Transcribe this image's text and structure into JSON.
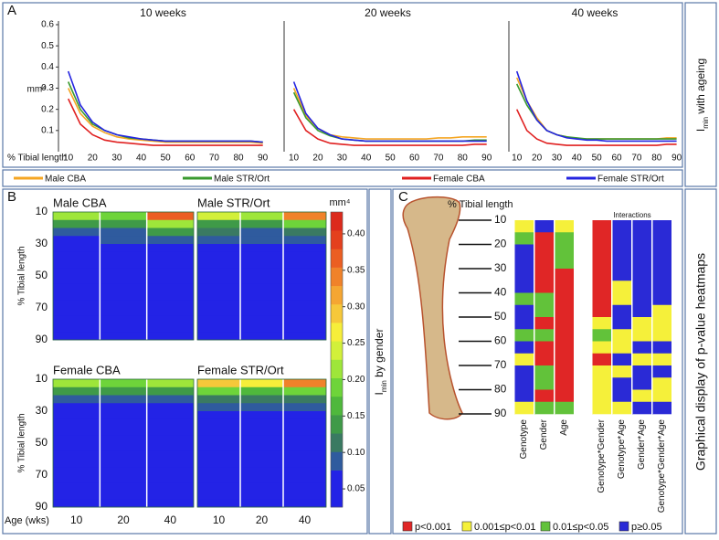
{
  "panels": {
    "a": {
      "label": "A",
      "side_title": {
        "symbol": "I",
        "subscript": "min",
        "text": " with ageing"
      }
    },
    "b": {
      "label": "B",
      "side_title": {
        "symbol": "I",
        "subscript": "min",
        "text": " by gender"
      }
    },
    "c": {
      "label": "C",
      "side_title": "Graphical display of p-value heatmaps"
    }
  },
  "chart_data": [
    {
      "type": "line",
      "title": "10 weeks",
      "ylabel": "mm⁴",
      "xlabel": "% Tibial length",
      "x": [
        10,
        15,
        20,
        25,
        30,
        35,
        40,
        45,
        50,
        55,
        60,
        65,
        70,
        75,
        80,
        85,
        90
      ],
      "xlim": [
        6,
        92
      ],
      "xticks": [
        10,
        20,
        30,
        40,
        50,
        60,
        70,
        80,
        90
      ],
      "ylim": [
        0,
        0.6
      ],
      "yticks": [
        0.1,
        0.2,
        0.3,
        0.4,
        0.5,
        0.6
      ],
      "series": [
        {
          "name": "Male CBA",
          "color": "#f5a623",
          "values": [
            0.3,
            0.18,
            0.12,
            0.09,
            0.07,
            0.06,
            0.055,
            0.05,
            0.045,
            0.045,
            0.045,
            0.045,
            0.045,
            0.045,
            0.045,
            0.045,
            0.04
          ]
        },
        {
          "name": "Male STR/Ort",
          "color": "#3a9a2f",
          "values": [
            0.33,
            0.2,
            0.13,
            0.1,
            0.08,
            0.065,
            0.06,
            0.055,
            0.05,
            0.05,
            0.05,
            0.05,
            0.05,
            0.05,
            0.05,
            0.05,
            0.045
          ]
        },
        {
          "name": "Female CBA",
          "color": "#e02020",
          "values": [
            0.25,
            0.13,
            0.08,
            0.055,
            0.045,
            0.04,
            0.035,
            0.03,
            0.03,
            0.03,
            0.03,
            0.03,
            0.03,
            0.03,
            0.03,
            0.03,
            0.03
          ]
        },
        {
          "name": "Female STR/Ort",
          "color": "#2424e0",
          "values": [
            0.38,
            0.22,
            0.14,
            0.1,
            0.08,
            0.07,
            0.06,
            0.055,
            0.05,
            0.05,
            0.05,
            0.05,
            0.05,
            0.05,
            0.05,
            0.05,
            0.045
          ]
        }
      ]
    },
    {
      "type": "line",
      "title": "20 weeks",
      "x": [
        10,
        15,
        20,
        25,
        30,
        35,
        40,
        45,
        50,
        55,
        60,
        65,
        70,
        75,
        80,
        85,
        90
      ],
      "xlim": [
        6,
        92
      ],
      "xticks": [
        10,
        20,
        30,
        40,
        50,
        60,
        70,
        80,
        90
      ],
      "ylim": [
        0,
        0.6
      ],
      "series": [
        {
          "name": "Male CBA",
          "color": "#f5a623",
          "values": [
            0.3,
            0.17,
            0.11,
            0.08,
            0.07,
            0.065,
            0.06,
            0.06,
            0.06,
            0.06,
            0.06,
            0.06,
            0.065,
            0.065,
            0.07,
            0.07,
            0.07
          ]
        },
        {
          "name": "Male STR/Ort",
          "color": "#3a9a2f",
          "values": [
            0.28,
            0.16,
            0.1,
            0.075,
            0.06,
            0.055,
            0.05,
            0.05,
            0.05,
            0.05,
            0.05,
            0.05,
            0.05,
            0.05,
            0.05,
            0.055,
            0.055
          ]
        },
        {
          "name": "Female CBA",
          "color": "#e02020",
          "values": [
            0.2,
            0.1,
            0.06,
            0.04,
            0.035,
            0.03,
            0.03,
            0.03,
            0.03,
            0.03,
            0.03,
            0.03,
            0.03,
            0.03,
            0.03,
            0.035,
            0.035
          ]
        },
        {
          "name": "Female STR/Ort",
          "color": "#2424e0",
          "values": [
            0.33,
            0.18,
            0.11,
            0.08,
            0.06,
            0.055,
            0.05,
            0.05,
            0.05,
            0.05,
            0.05,
            0.05,
            0.05,
            0.05,
            0.05,
            0.05,
            0.05
          ]
        }
      ]
    },
    {
      "type": "line",
      "title": "40 weeks",
      "x": [
        10,
        15,
        20,
        25,
        30,
        35,
        40,
        45,
        50,
        55,
        60,
        65,
        70,
        75,
        80,
        85,
        90
      ],
      "xlim": [
        6,
        92
      ],
      "xticks": [
        10,
        20,
        30,
        40,
        50,
        60,
        70,
        80,
        90
      ],
      "ylim": [
        0,
        0.6
      ],
      "series": [
        {
          "name": "Male CBA",
          "color": "#f5a623",
          "values": [
            0.35,
            0.24,
            0.16,
            0.1,
            0.08,
            0.07,
            0.06,
            0.06,
            0.06,
            0.06,
            0.06,
            0.06,
            0.06,
            0.06,
            0.06,
            0.065,
            0.065
          ]
        },
        {
          "name": "Male STR/Ort",
          "color": "#3a9a2f",
          "values": [
            0.32,
            0.22,
            0.15,
            0.1,
            0.08,
            0.07,
            0.065,
            0.06,
            0.06,
            0.06,
            0.06,
            0.06,
            0.06,
            0.06,
            0.06,
            0.06,
            0.06
          ]
        },
        {
          "name": "Female CBA",
          "color": "#e02020",
          "values": [
            0.2,
            0.1,
            0.06,
            0.04,
            0.035,
            0.03,
            0.03,
            0.03,
            0.03,
            0.03,
            0.03,
            0.03,
            0.03,
            0.03,
            0.03,
            0.035,
            0.035
          ]
        },
        {
          "name": "Female STR/Ort",
          "color": "#2424e0",
          "values": [
            0.38,
            0.24,
            0.15,
            0.1,
            0.08,
            0.065,
            0.06,
            0.055,
            0.055,
            0.05,
            0.05,
            0.05,
            0.05,
            0.05,
            0.05,
            0.05,
            0.05
          ]
        }
      ]
    },
    {
      "type": "heatmap",
      "title": "Male CBA",
      "ylabel": "% Tibial length",
      "y_bins": [
        10,
        15,
        20,
        25,
        30,
        35,
        40,
        45,
        50,
        55,
        60,
        65,
        70,
        75,
        80,
        85,
        90
      ],
      "yticks": [
        10,
        30,
        50,
        70,
        90
      ],
      "values": [
        [
          0.22,
          0.14,
          0.1,
          0.075,
          0.065,
          0.06,
          0.04,
          0.04,
          0.04,
          0.04,
          0.04,
          0.04,
          0.04,
          0.04,
          0.04,
          0.04
        ],
        [
          0.2,
          0.13,
          0.1,
          0.08,
          0.07,
          0.065,
          0.065,
          0.055,
          0.04,
          0.04,
          0.04,
          0.04,
          0.04,
          0.04,
          0.04,
          0.045
        ],
        [
          0.36,
          0.22,
          0.13,
          0.095,
          0.07,
          0.065,
          0.065,
          0.065,
          0.065,
          0.065,
          0.065,
          0.065,
          0.065,
          0.065,
          0.065,
          0.04
        ]
      ]
    },
    {
      "type": "heatmap",
      "title": "Male STR/Ort",
      "y_bins": [
        10,
        15,
        20,
        25,
        30,
        35,
        40,
        45,
        50,
        55,
        60,
        65,
        70,
        75,
        80,
        85,
        90
      ],
      "values": [
        [
          0.25,
          0.15,
          0.11,
          0.08,
          0.07,
          0.065,
          0.065,
          0.04,
          0.04,
          0.04,
          0.04,
          0.04,
          0.04,
          0.04,
          0.04,
          0.04
        ],
        [
          0.22,
          0.14,
          0.1,
          0.08,
          0.065,
          0.065,
          0.065,
          0.065,
          0.065,
          0.065,
          0.065,
          0.065,
          0.065,
          0.065,
          0.065,
          0.065
        ],
        [
          0.33,
          0.2,
          0.12,
          0.09,
          0.075,
          0.065,
          0.065,
          0.065,
          0.065,
          0.065,
          0.065,
          0.065,
          0.04,
          0.04,
          0.04,
          0.04
        ]
      ]
    },
    {
      "type": "heatmap",
      "title": "Female CBA",
      "ylabel": "% Tibial length",
      "xlabel": "Age (wks)",
      "categories": [
        "10",
        "20",
        "40"
      ],
      "y_bins": [
        10,
        15,
        20,
        25,
        30,
        35,
        40,
        45,
        50,
        55,
        60,
        65,
        70,
        75,
        80,
        85,
        90
      ],
      "yticks": [
        10,
        30,
        50,
        70,
        90
      ],
      "values": [
        [
          0.22,
          0.14,
          0.09,
          0.07,
          0.04,
          0.04,
          0.04,
          0.04,
          0.04,
          0.04,
          0.04,
          0.04,
          0.04,
          0.04,
          0.04,
          0.04
        ],
        [
          0.2,
          0.13,
          0.085,
          0.065,
          0.04,
          0.04,
          0.04,
          0.04,
          0.04,
          0.04,
          0.04,
          0.04,
          0.04,
          0.04,
          0.04,
          0.04
        ],
        [
          0.22,
          0.14,
          0.09,
          0.065,
          0.04,
          0.04,
          0.04,
          0.04,
          0.04,
          0.04,
          0.04,
          0.04,
          0.04,
          0.04,
          0.04,
          0.04
        ]
      ]
    },
    {
      "type": "heatmap",
      "title": "Female STR/Ort",
      "categories": [
        "10",
        "20",
        "40"
      ],
      "y_bins": [
        10,
        15,
        20,
        25,
        30,
        35,
        40,
        45,
        50,
        55,
        60,
        65,
        70,
        75,
        80,
        85,
        90
      ],
      "values": [
        [
          0.3,
          0.18,
          0.12,
          0.085,
          0.07,
          0.065,
          0.065,
          0.065,
          0.04,
          0.04,
          0.04,
          0.04,
          0.04,
          0.04,
          0.04,
          0.04
        ],
        [
          0.27,
          0.16,
          0.11,
          0.08,
          0.07,
          0.065,
          0.04,
          0.04,
          0.04,
          0.04,
          0.04,
          0.04,
          0.04,
          0.04,
          0.04,
          0.04
        ],
        [
          0.34,
          0.2,
          0.12,
          0.085,
          0.07,
          0.065,
          0.065,
          0.065,
          0.065,
          0.04,
          0.04,
          0.065,
          0.04,
          0.04,
          0.04,
          0.04
        ]
      ]
    },
    {
      "type": "colorbar",
      "label": "mm⁴",
      "lim": [
        0.025,
        0.43
      ],
      "ticks": [
        0.05,
        {
          "value": 0.1,
          "label": "0.10"
        },
        0.15,
        {
          "value": 0.2,
          "label": "0.20"
        },
        0.25,
        {
          "value": 0.3,
          "label": "0.30"
        },
        0.35,
        {
          "value": 0.4,
          "label": "0.40"
        }
      ],
      "colormap": [
        "#2323e6",
        "#2323e6",
        "#2f5b9e",
        "#3a7a62",
        "#3f9a48",
        "#4fb83c",
        "#6ed43a",
        "#9ee63a",
        "#d2f03a",
        "#f6ee3a",
        "#f6c83a",
        "#f5a632",
        "#f0822a",
        "#eb5e22",
        "#e4401e",
        "#dc2a1c"
      ]
    },
    {
      "type": "pvalue_heatmap",
      "ylabel": "% Tibial length",
      "group_title": "Interactions",
      "y_bins": [
        10,
        15,
        20,
        25,
        30,
        35,
        40,
        45,
        50,
        55,
        60,
        65,
        70,
        75,
        80,
        85,
        90
      ],
      "yticks": [
        10,
        20,
        30,
        40,
        50,
        60,
        70,
        80,
        90
      ],
      "categories": [
        "Genotype",
        "Gender",
        "Age",
        "Genotype*Gender",
        "Genotype*Age",
        "Gender*Age",
        "Genotype*Gender*Age"
      ],
      "levels": [
        {
          "label": "p<0.001",
          "color": "#e02626"
        },
        {
          "label": "0.001≤p<0.01",
          "color": "#f5f03a"
        },
        {
          "label": "0.01≤p<0.05",
          "color": "#62c23a"
        },
        {
          "label": "p≥0.05",
          "color": "#2a2ad6"
        }
      ],
      "values": [
        [
          1,
          2,
          3,
          3,
          3,
          3,
          2,
          3,
          3,
          2,
          3,
          1,
          3,
          3,
          3,
          1
        ],
        [
          3,
          0,
          0,
          0,
          0,
          0,
          2,
          2,
          0,
          2,
          0,
          0,
          2,
          2,
          0,
          2
        ],
        [
          1,
          2,
          2,
          2,
          0,
          0,
          0,
          0,
          0,
          0,
          0,
          0,
          0,
          0,
          0,
          2
        ],
        [
          0,
          0,
          0,
          0,
          0,
          0,
          0,
          0,
          1,
          2,
          1,
          0,
          1,
          1,
          1,
          1
        ],
        [
          3,
          3,
          3,
          3,
          3,
          1,
          1,
          3,
          3,
          1,
          1,
          3,
          1,
          3,
          3,
          1
        ],
        [
          3,
          3,
          3,
          3,
          3,
          3,
          3,
          3,
          1,
          1,
          3,
          1,
          3,
          3,
          1,
          3
        ],
        [
          3,
          3,
          3,
          3,
          3,
          3,
          3,
          1,
          1,
          1,
          3,
          1,
          3,
          1,
          1,
          3
        ]
      ]
    }
  ]
}
